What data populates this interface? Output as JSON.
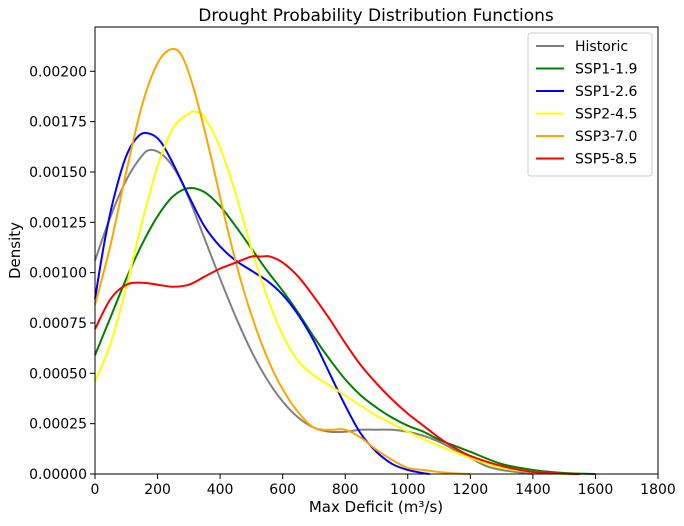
{
  "chart_data": {
    "type": "line",
    "title": "Drought Probability Distribution Functions",
    "xlabel": "Max Deficit (m³/s)",
    "ylabel": "Density",
    "xlim": [
      0,
      1800
    ],
    "ylim": [
      0,
      0.00222
    ],
    "xticks": [
      "0",
      "200",
      "400",
      "600",
      "800",
      "1000",
      "1200",
      "1400",
      "1600",
      "1800"
    ],
    "yticks": [
      "0.00000",
      "0.00025",
      "0.00050",
      "0.00075",
      "0.00100",
      "0.00125",
      "0.00150",
      "0.00175",
      "0.00200"
    ],
    "grid": false,
    "legend_position": "top-right",
    "series": [
      {
        "name": "Historic",
        "color": "#808080",
        "x": [
          0,
          50,
          100,
          150,
          180,
          220,
          260,
          300,
          350,
          400,
          450,
          500,
          550,
          600,
          650,
          700,
          750,
          800,
          850,
          900,
          950,
          1000,
          1050,
          1100,
          1150,
          1200,
          1250,
          1300,
          1400
        ],
        "y": [
          0.00106,
          0.00128,
          0.00146,
          0.00158,
          0.00161,
          0.00158,
          0.0015,
          0.00137,
          0.00117,
          0.00097,
          0.00078,
          0.00061,
          0.00047,
          0.00036,
          0.00028,
          0.00023,
          0.00021,
          0.00021,
          0.00022,
          0.00022,
          0.00022,
          0.00021,
          0.00019,
          0.00016,
          0.00012,
          8e-05,
          4e-05,
          2e-05,
          0.0
        ]
      },
      {
        "name": "SSP1-1.9",
        "color": "#008000",
        "x": [
          0,
          50,
          100,
          150,
          200,
          250,
          300,
          350,
          400,
          450,
          500,
          550,
          600,
          650,
          700,
          750,
          800,
          850,
          900,
          950,
          1000,
          1050,
          1100,
          1150,
          1200,
          1300,
          1400,
          1500,
          1600
        ],
        "y": [
          0.00059,
          0.00078,
          0.00097,
          0.00114,
          0.00128,
          0.00138,
          0.00142,
          0.0014,
          0.00133,
          0.00123,
          0.00112,
          0.00101,
          0.00091,
          0.0008,
          0.00068,
          0.00057,
          0.00047,
          0.00039,
          0.00033,
          0.00028,
          0.00024,
          0.00021,
          0.00017,
          0.00014,
          0.00011,
          5e-05,
          2e-05,
          5e-06,
          0.0
        ]
      },
      {
        "name": "SSP1-2.6",
        "color": "#0000ff",
        "x": [
          0,
          30,
          60,
          100,
          140,
          175,
          210,
          250,
          300,
          350,
          400,
          450,
          500,
          550,
          600,
          650,
          700,
          750,
          800,
          850,
          900,
          950,
          1000,
          1050,
          1070
        ],
        "y": [
          0.00087,
          0.00115,
          0.00137,
          0.00158,
          0.00168,
          0.00169,
          0.00165,
          0.00154,
          0.00138,
          0.00123,
          0.00113,
          0.00106,
          0.00101,
          0.00096,
          0.00089,
          0.00079,
          0.00066,
          0.0005,
          0.00034,
          0.0002,
          0.00011,
          5e-05,
          2e-05,
          4e-06,
          0.0
        ]
      },
      {
        "name": "SSP2-4.5",
        "color": "#ffff00",
        "x": [
          0,
          50,
          100,
          150,
          200,
          250,
          300,
          320,
          350,
          400,
          450,
          500,
          550,
          600,
          650,
          700,
          750,
          800,
          850,
          900,
          950,
          1000,
          1100,
          1200,
          1300,
          1400,
          1500
        ],
        "y": [
          0.00046,
          0.00065,
          0.00093,
          0.00125,
          0.00153,
          0.00172,
          0.00179,
          0.0018,
          0.00177,
          0.00162,
          0.00139,
          0.00112,
          0.00088,
          0.00069,
          0.00056,
          0.00049,
          0.00044,
          0.00039,
          0.00034,
          0.00029,
          0.00025,
          0.00021,
          0.00014,
          8e-05,
          3e-05,
          1e-05,
          0.0
        ]
      },
      {
        "name": "SSP3-7.0",
        "color": "#ffa500",
        "x": [
          0,
          50,
          100,
          150,
          200,
          245,
          280,
          320,
          370,
          420,
          470,
          520,
          570,
          620,
          670,
          700,
          730,
          760,
          800,
          850,
          900,
          950,
          1000,
          1050,
          1100,
          1150,
          1200
        ],
        "y": [
          0.00084,
          0.00114,
          0.0015,
          0.00183,
          0.00204,
          0.00211,
          0.00207,
          0.00189,
          0.00158,
          0.00124,
          0.00094,
          0.0007,
          0.00051,
          0.00037,
          0.00027,
          0.00023,
          0.00022,
          0.00022,
          0.00022,
          0.00018,
          0.00012,
          7e-05,
          3e-05,
          2e-05,
          1e-05,
          3e-06,
          0.0
        ]
      },
      {
        "name": "SSP5-8.5",
        "color": "#ff0000",
        "x": [
          0,
          50,
          100,
          150,
          200,
          250,
          300,
          350,
          400,
          450,
          500,
          530,
          560,
          600,
          650,
          700,
          750,
          800,
          850,
          900,
          950,
          1000,
          1050,
          1100,
          1150,
          1200,
          1300,
          1400,
          1500,
          1550
        ],
        "y": [
          0.00072,
          0.00087,
          0.00094,
          0.00095,
          0.00094,
          0.00093,
          0.00094,
          0.00098,
          0.00102,
          0.00105,
          0.00108,
          0.00108,
          0.00108,
          0.00105,
          0.00098,
          0.00088,
          0.00077,
          0.00065,
          0.00054,
          0.00045,
          0.00037,
          0.0003,
          0.00024,
          0.00018,
          0.00013,
          9e-05,
          4e-05,
          1e-05,
          2e-06,
          0.0
        ]
      }
    ]
  }
}
